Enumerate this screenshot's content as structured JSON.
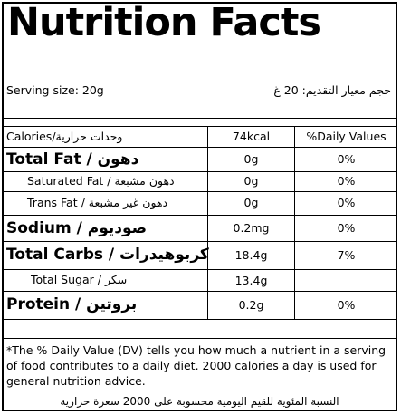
{
  "title": "Nutrition Facts",
  "serving": {
    "label_en": "Serving size: 20g",
    "label_ar": "حجم معيار التقديم: 20 غ"
  },
  "header": {
    "col1_en": "Calories/",
    "col1_ar": "وحدات حرارية",
    "col2": "74kcal",
    "col3": "%Daily Values"
  },
  "rows": [
    {
      "en": "Total Fat /",
      "ar": "دهون",
      "amount": "0g",
      "dv": "0%"
    },
    {
      "en": "Saturated Fat /",
      "ar": "دهون مشبعة",
      "amount": "0g",
      "dv": "0%"
    },
    {
      "en": "Trans Fat /",
      "ar": "دهون غير مشبعة",
      "amount": "0g",
      "dv": "0%"
    },
    {
      "en": "Sodium /",
      "ar": "صوديوم",
      "amount": "0.2mg",
      "dv": "0%"
    },
    {
      "en": "Total Carbs /",
      "ar": "كربوهيدرات",
      "amount": "18.4g",
      "dv": "7%"
    },
    {
      "en": "Total Sugar /",
      "ar": "سكر",
      "amount": "13.4g",
      "dv": ""
    },
    {
      "en": "Protein /",
      "ar": "بروتين",
      "amount": "0.2g",
      "dv": "0%"
    }
  ],
  "footnote": {
    "en": "*The % Daily Value (DV) tells you how much a nutrient in a serving of food contributes to a daily diet. 2000 calories a day is used for general nutrition advice.",
    "ar": "النسبة المئوية للقيم اليومية محسوبة على 2000 سعرة حرارية"
  }
}
